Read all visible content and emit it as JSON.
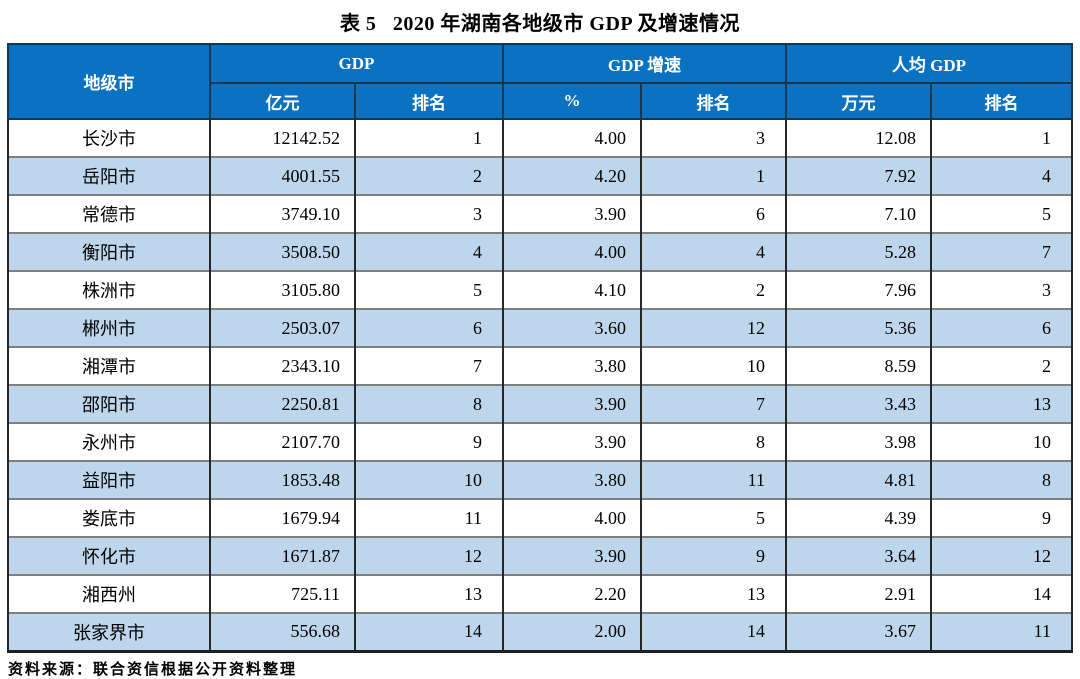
{
  "title": "表 5   2020 年湖南各地级市 GDP 及增速情况",
  "source_note": "资料来源：联合资信根据公开资料整理",
  "colors": {
    "header_bg": "#0a72c0",
    "stripe_bg": "#bdd6ec",
    "header_text": "#ffffff",
    "grid_dark": "#262626",
    "grid_gray": "#7f7f7f"
  },
  "table": {
    "col1_header": "地级市",
    "groups": [
      {
        "label": "GDP",
        "sub": [
          "亿元",
          "排名"
        ]
      },
      {
        "label": "GDP 增速",
        "sub": [
          "%",
          "排名"
        ]
      },
      {
        "label": "人均 GDP",
        "sub": [
          "万元",
          "排名"
        ]
      }
    ],
    "rows": [
      {
        "city": "长沙市",
        "gdp": "12142.52",
        "gdp_rank": "1",
        "growth": "4.00",
        "growth_rank": "3",
        "per_capita": "12.08",
        "per_capita_rank": "1"
      },
      {
        "city": "岳阳市",
        "gdp": "4001.55",
        "gdp_rank": "2",
        "growth": "4.20",
        "growth_rank": "1",
        "per_capita": "7.92",
        "per_capita_rank": "4"
      },
      {
        "city": "常德市",
        "gdp": "3749.10",
        "gdp_rank": "3",
        "growth": "3.90",
        "growth_rank": "6",
        "per_capita": "7.10",
        "per_capita_rank": "5"
      },
      {
        "city": "衡阳市",
        "gdp": "3508.50",
        "gdp_rank": "4",
        "growth": "4.00",
        "growth_rank": "4",
        "per_capita": "5.28",
        "per_capita_rank": "7"
      },
      {
        "city": "株洲市",
        "gdp": "3105.80",
        "gdp_rank": "5",
        "growth": "4.10",
        "growth_rank": "2",
        "per_capita": "7.96",
        "per_capita_rank": "3"
      },
      {
        "city": "郴州市",
        "gdp": "2503.07",
        "gdp_rank": "6",
        "growth": "3.60",
        "growth_rank": "12",
        "per_capita": "5.36",
        "per_capita_rank": "6"
      },
      {
        "city": "湘潭市",
        "gdp": "2343.10",
        "gdp_rank": "7",
        "growth": "3.80",
        "growth_rank": "10",
        "per_capita": "8.59",
        "per_capita_rank": "2"
      },
      {
        "city": "邵阳市",
        "gdp": "2250.81",
        "gdp_rank": "8",
        "growth": "3.90",
        "growth_rank": "7",
        "per_capita": "3.43",
        "per_capita_rank": "13"
      },
      {
        "city": "永州市",
        "gdp": "2107.70",
        "gdp_rank": "9",
        "growth": "3.90",
        "growth_rank": "8",
        "per_capita": "3.98",
        "per_capita_rank": "10"
      },
      {
        "city": "益阳市",
        "gdp": "1853.48",
        "gdp_rank": "10",
        "growth": "3.80",
        "growth_rank": "11",
        "per_capita": "4.81",
        "per_capita_rank": "8"
      },
      {
        "city": "娄底市",
        "gdp": "1679.94",
        "gdp_rank": "11",
        "growth": "4.00",
        "growth_rank": "5",
        "per_capita": "4.39",
        "per_capita_rank": "9"
      },
      {
        "city": "怀化市",
        "gdp": "1671.87",
        "gdp_rank": "12",
        "growth": "3.90",
        "growth_rank": "9",
        "per_capita": "3.64",
        "per_capita_rank": "12"
      },
      {
        "city": "湘西州",
        "gdp": "725.11",
        "gdp_rank": "13",
        "growth": "2.20",
        "growth_rank": "13",
        "per_capita": "2.91",
        "per_capita_rank": "14"
      },
      {
        "city": "张家界市",
        "gdp": "556.68",
        "gdp_rank": "14",
        "growth": "2.00",
        "growth_rank": "14",
        "per_capita": "3.67",
        "per_capita_rank": "11"
      }
    ]
  }
}
